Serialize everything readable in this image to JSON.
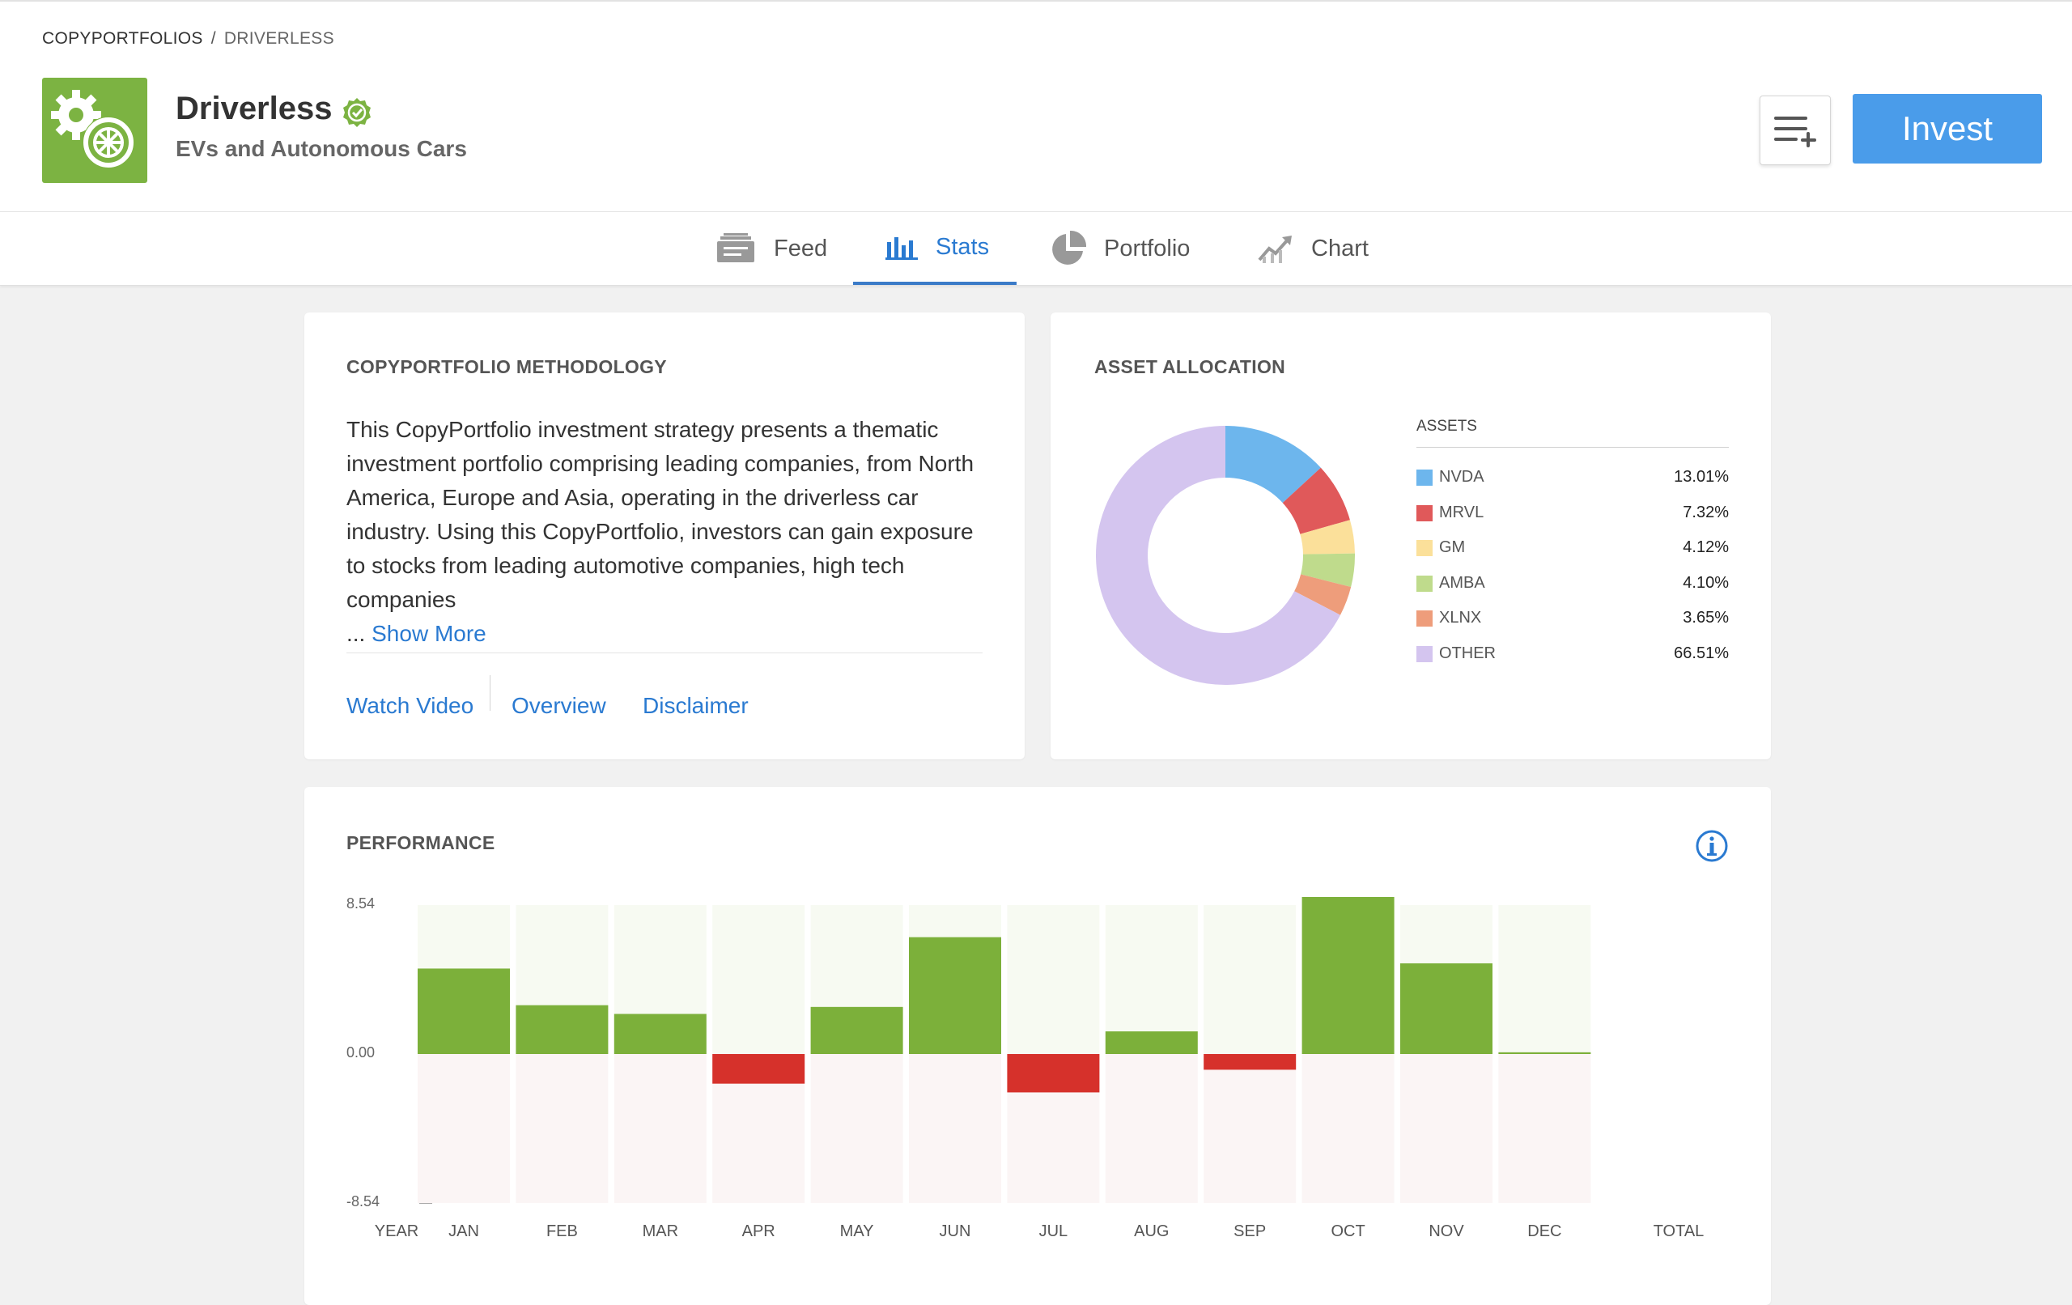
{
  "breadcrumb": {
    "root": "COPYPORTFOLIOS",
    "separator": "/",
    "current": "DRIVERLESS"
  },
  "header": {
    "title": "Driverless",
    "subtitle": "EVs and Autonomous Cars",
    "invest_label": "Invest",
    "logo_icon": "gear-wheel-icon",
    "verified_icon": "verified-badge-icon",
    "accent": "#7cb342"
  },
  "tabs": [
    {
      "label": "Feed",
      "icon": "feed-icon",
      "active": false
    },
    {
      "label": "Stats",
      "icon": "bar-chart-icon",
      "active": true
    },
    {
      "label": "Portfolio",
      "icon": "pie-chart-icon",
      "active": false
    },
    {
      "label": "Chart",
      "icon": "trend-chart-icon",
      "active": false
    }
  ],
  "methodology": {
    "title": "COPYPORTFOLIO METHODOLOGY",
    "text": "This CopyPortfolio investment strategy presents a thematic investment portfolio comprising leading companies, from North America, Europe and Asia, operating in the driverless car industry. Using this CopyPortfolio, investors can gain exposure to stocks from leading automotive companies, high tech companies",
    "ellipsis": "...",
    "show_more": "Show More",
    "links": {
      "watch_video": "Watch Video",
      "overview": "Overview",
      "disclaimer": "Disclaimer"
    }
  },
  "allocation": {
    "title": "ASSET ALLOCATION",
    "legend_title": "ASSETS",
    "assets": [
      {
        "name": "NVDA",
        "percent": "13.01%",
        "value": 13.01,
        "color": "#6db6ed"
      },
      {
        "name": "MRVL",
        "percent": "7.32%",
        "value": 7.32,
        "color": "#e0595a"
      },
      {
        "name": "GM",
        "percent": "4.12%",
        "value": 4.12,
        "color": "#fbe09a"
      },
      {
        "name": "AMBA",
        "percent": "4.10%",
        "value": 4.1,
        "color": "#bfdb8c"
      },
      {
        "name": "XLNX",
        "percent": "3.65%",
        "value": 3.65,
        "color": "#ee9d7b"
      },
      {
        "name": "OTHER",
        "percent": "66.51%",
        "value": 66.51,
        "color": "#d4c5ef"
      }
    ]
  },
  "performance": {
    "title": "PERFORMANCE",
    "info_icon": "info-icon",
    "first_label": "YEAR",
    "last_label": "TOTAL",
    "positive_color": "#7cb03a",
    "negative_color": "#d6312b"
  },
  "chart_data": {
    "type": "bar",
    "categories": [
      "JAN",
      "FEB",
      "MAR",
      "APR",
      "MAY",
      "JUN",
      "JUL",
      "AUG",
      "SEP",
      "OCT",
      "NOV",
      "DEC"
    ],
    "values": [
      4.9,
      2.8,
      2.3,
      -1.7,
      2.7,
      6.7,
      -2.2,
      1.3,
      -0.9,
      9.3,
      5.2,
      0.1
    ],
    "ylim": [
      -8.54,
      8.54
    ],
    "yticks": [
      "8.54",
      "0.00",
      "-8.54"
    ]
  }
}
